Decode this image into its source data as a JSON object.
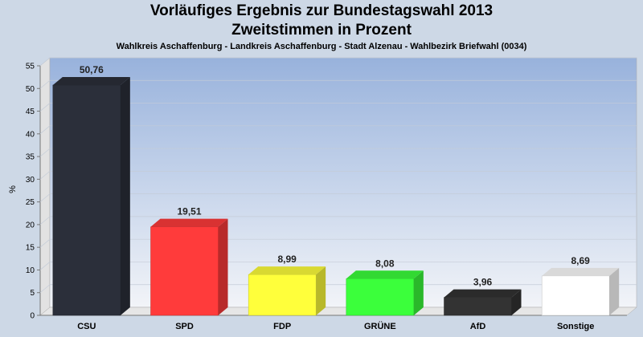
{
  "chart_data": {
    "type": "bar",
    "title": "Vorläufiges Ergebnis zur Bundestagswahl 2013",
    "subtitle": "Zweitstimmen in Prozent",
    "caption": "Wahlkreis Aschaffenburg - Landkreis Aschaffenburg - Stadt Alzenau - Wahlbezirk Briefwahl (0034)",
    "ylabel": "%",
    "xlabel": "",
    "ylim": [
      0,
      55
    ],
    "yticks": [
      0,
      5,
      10,
      15,
      20,
      25,
      30,
      35,
      40,
      45,
      50,
      55
    ],
    "categories": [
      "CSU",
      "SPD",
      "FDP",
      "GRÜNE",
      "AfD",
      "Sonstige"
    ],
    "values": [
      50.76,
      19.51,
      8.99,
      8.08,
      3.96,
      8.69
    ],
    "value_labels": [
      "50,76",
      "19,51",
      "8,99",
      "8,08",
      "3,96",
      "8,69"
    ],
    "colors": [
      "#2b2f3a",
      "#ff3b3b",
      "#ffff3b",
      "#3bff3b",
      "#333333",
      "#ffffff"
    ],
    "grid": true,
    "legend": "none"
  }
}
